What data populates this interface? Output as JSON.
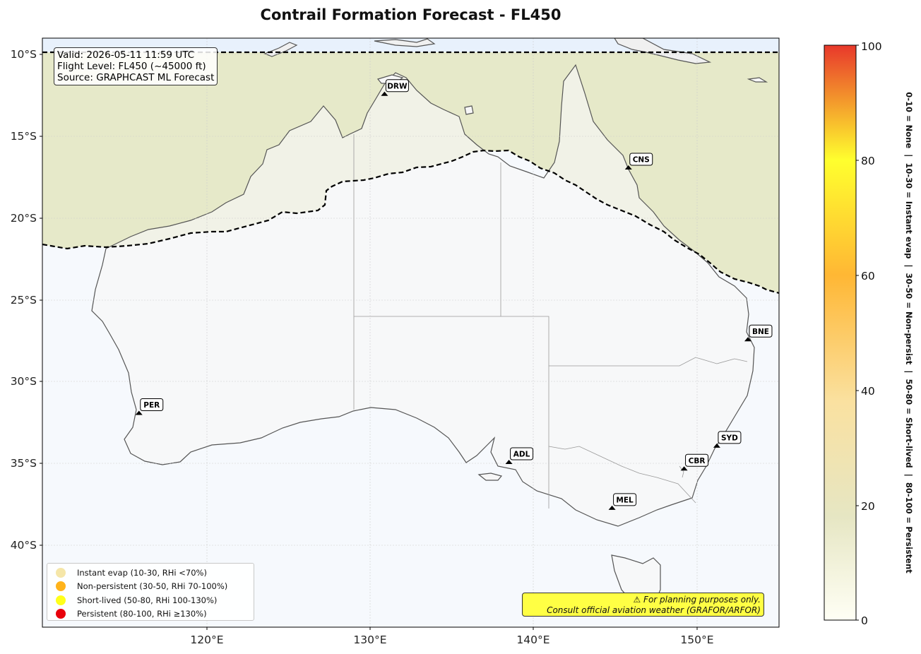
{
  "title": "Contrail Formation Forecast - FL450",
  "info": {
    "valid": "Valid: 2026-05-11 11:59 UTC",
    "flight_level": "Flight Level: FL450 (~45000 ft)",
    "source": "Source: GRAPHCAST ML Forecast"
  },
  "lat_labels": [
    "10°S",
    "15°S",
    "20°S",
    "25°S",
    "30°S",
    "35°S",
    "40°S"
  ],
  "lon_labels": [
    "120°E",
    "130°E",
    "140°E",
    "150°E"
  ],
  "airports": [
    {
      "code": "DRW",
      "lon": 130.9,
      "lat": -12.4
    },
    {
      "code": "CNS",
      "lon": 145.8,
      "lat": -16.9
    },
    {
      "code": "BNE",
      "lon": 153.1,
      "lat": -27.4
    },
    {
      "code": "PER",
      "lon": 115.9,
      "lat": -31.9
    },
    {
      "code": "ADL",
      "lon": 138.5,
      "lat": -34.9
    },
    {
      "code": "SYD",
      "lon": 151.2,
      "lat": -33.9
    },
    {
      "code": "CBR",
      "lon": 149.2,
      "lat": -35.3
    },
    {
      "code": "MEL",
      "lon": 144.8,
      "lat": -37.7
    }
  ],
  "legend": [
    {
      "label": "Instant evap (10-30, RHi <70%)",
      "color": "#f5e6a8"
    },
    {
      "label": "Non-persistent (30-50, RHi 70-100%)",
      "color": "#ffb31a"
    },
    {
      "label": "Short-lived (50-80, RHi 100-130%)",
      "color": "#ffff1a"
    },
    {
      "label": "Persistent (80-100, RHi ≥130%)",
      "color": "#e8000b"
    }
  ],
  "disclaimer": {
    "line1": "⚠ For planning purposes only.",
    "line2": "Consult official aviation weather (GRAFOR/ARFOR)"
  },
  "colorbar": {
    "ticks": [
      "0",
      "20",
      "40",
      "60",
      "80",
      "100"
    ],
    "description": "0-10 = None  |  10-30 = Instant evap  |  30-50 = Non-persist  |  50-80 = Short-lived  |  80-100 = Persistent",
    "stops": [
      "#fffff5",
      "#e6e6c3",
      "#fae1a0",
      "#ffb734",
      "#ffff2e",
      "#e8382b"
    ]
  },
  "colors": {
    "north_zone": "#e6e9c9",
    "south_zone": "#f6f9fd",
    "land": "#f7f7f7",
    "top_strip": "#e8f1fc"
  }
}
